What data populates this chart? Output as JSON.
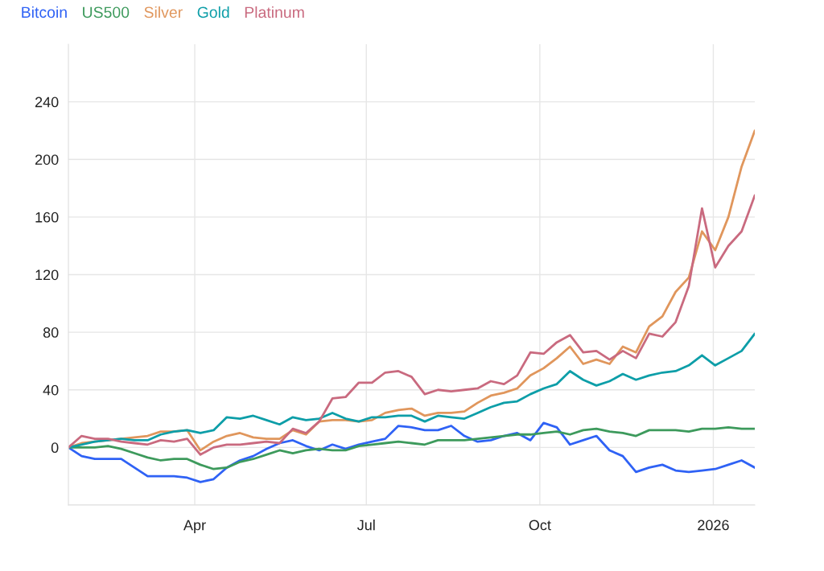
{
  "chart_data": {
    "type": "line",
    "x": [
      "2025-01-24",
      "2025-01-31",
      "2025-02-07",
      "2025-02-14",
      "2025-02-21",
      "2025-02-28",
      "2025-03-07",
      "2025-03-14",
      "2025-03-21",
      "2025-03-28",
      "2025-04-04",
      "2025-04-11",
      "2025-04-18",
      "2025-04-25",
      "2025-05-02",
      "2025-05-09",
      "2025-05-16",
      "2025-05-23",
      "2025-05-30",
      "2025-06-06",
      "2025-06-13",
      "2025-06-20",
      "2025-06-27",
      "2025-07-04",
      "2025-07-11",
      "2025-07-18",
      "2025-07-25",
      "2025-08-01",
      "2025-08-08",
      "2025-08-15",
      "2025-08-22",
      "2025-08-29",
      "2025-09-05",
      "2025-09-12",
      "2025-09-19",
      "2025-09-26",
      "2025-10-03",
      "2025-10-10",
      "2025-10-17",
      "2025-10-24",
      "2025-10-31",
      "2025-11-07",
      "2025-11-14",
      "2025-11-21",
      "2025-11-28",
      "2025-12-05",
      "2025-12-12",
      "2025-12-19",
      "2025-12-26",
      "2026-01-02",
      "2026-01-09",
      "2026-01-16",
      "2026-01-23"
    ],
    "series": [
      {
        "name": "Bitcoin",
        "color": "#2f62f5",
        "values": [
          0,
          -6,
          -8,
          -8,
          -8,
          -14,
          -20,
          -20,
          -20,
          -21,
          -24,
          -22,
          -14,
          -9,
          -6,
          -1,
          3,
          5,
          1,
          -2,
          2,
          -1,
          2,
          4,
          6,
          15,
          14,
          12,
          12,
          15,
          8,
          4,
          5,
          8,
          10,
          5,
          17,
          14,
          2,
          5,
          8,
          -2,
          -6,
          -17,
          -14,
          -12,
          -16,
          -17,
          -16,
          -15,
          -12,
          -9,
          -14
        ]
      },
      {
        "name": "US500",
        "color": "#3d9a5c",
        "values": [
          0,
          0,
          0,
          1,
          -1,
          -4,
          -7,
          -9,
          -8,
          -8,
          -12,
          -15,
          -14,
          -10,
          -8,
          -5,
          -2,
          -4,
          -2,
          -1,
          -2,
          -2,
          1,
          2,
          3,
          4,
          3,
          2,
          5,
          5,
          5,
          6,
          7,
          8,
          9,
          9,
          10,
          11,
          9,
          12,
          13,
          11,
          10,
          8,
          12,
          12,
          12,
          11,
          13,
          13,
          14,
          13,
          13
        ]
      },
      {
        "name": "Silver",
        "color": "#e0965c",
        "values": [
          0,
          3,
          4,
          5,
          6,
          7,
          8,
          11,
          11,
          12,
          -2,
          4,
          8,
          10,
          7,
          6,
          6,
          12,
          9,
          18,
          19,
          19,
          18,
          19,
          24,
          26,
          27,
          22,
          24,
          24,
          25,
          31,
          36,
          38,
          41,
          50,
          55,
          62,
          70,
          58,
          61,
          58,
          70,
          66,
          84,
          91,
          108,
          118,
          150,
          137,
          160,
          195,
          220
        ]
      },
      {
        "name": "Gold",
        "color": "#0d9ea8",
        "values": [
          0,
          2,
          4,
          5,
          6,
          5,
          5,
          9,
          11,
          12,
          10,
          12,
          21,
          20,
          22,
          19,
          16,
          21,
          19,
          20,
          24,
          20,
          18,
          21,
          21,
          22,
          22,
          18,
          22,
          21,
          20,
          24,
          28,
          31,
          32,
          37,
          41,
          44,
          53,
          47,
          43,
          46,
          51,
          47,
          50,
          52,
          53,
          57,
          64,
          57,
          62,
          67,
          79
        ]
      },
      {
        "name": "Platinum",
        "color": "#c96a7f",
        "values": [
          0,
          8,
          6,
          6,
          4,
          3,
          2,
          5,
          4,
          6,
          -5,
          0,
          2,
          2,
          3,
          4,
          3,
          13,
          10,
          18,
          34,
          35,
          45,
          45,
          52,
          53,
          49,
          37,
          40,
          39,
          40,
          41,
          46,
          44,
          50,
          66,
          65,
          73,
          78,
          66,
          67,
          61,
          67,
          62,
          79,
          77,
          87,
          112,
          166,
          125,
          140,
          150,
          175
        ]
      }
    ],
    "xlim": [
      "2025-01-24",
      "2026-01-23"
    ],
    "xticks": [
      {
        "value": "2025-04-01",
        "label": "Apr"
      },
      {
        "value": "2025-07-01",
        "label": "Jul"
      },
      {
        "value": "2025-10-01",
        "label": "Oct"
      },
      {
        "value": "2026-01-01",
        "label": "2026"
      }
    ],
    "ylim": [
      -40,
      280
    ],
    "yticks": [
      {
        "value": -40,
        "label": null
      },
      0,
      40,
      80,
      120,
      160,
      200,
      240
    ],
    "grid": true,
    "legend": "top left",
    "line_style": "solid",
    "marker": "none"
  }
}
